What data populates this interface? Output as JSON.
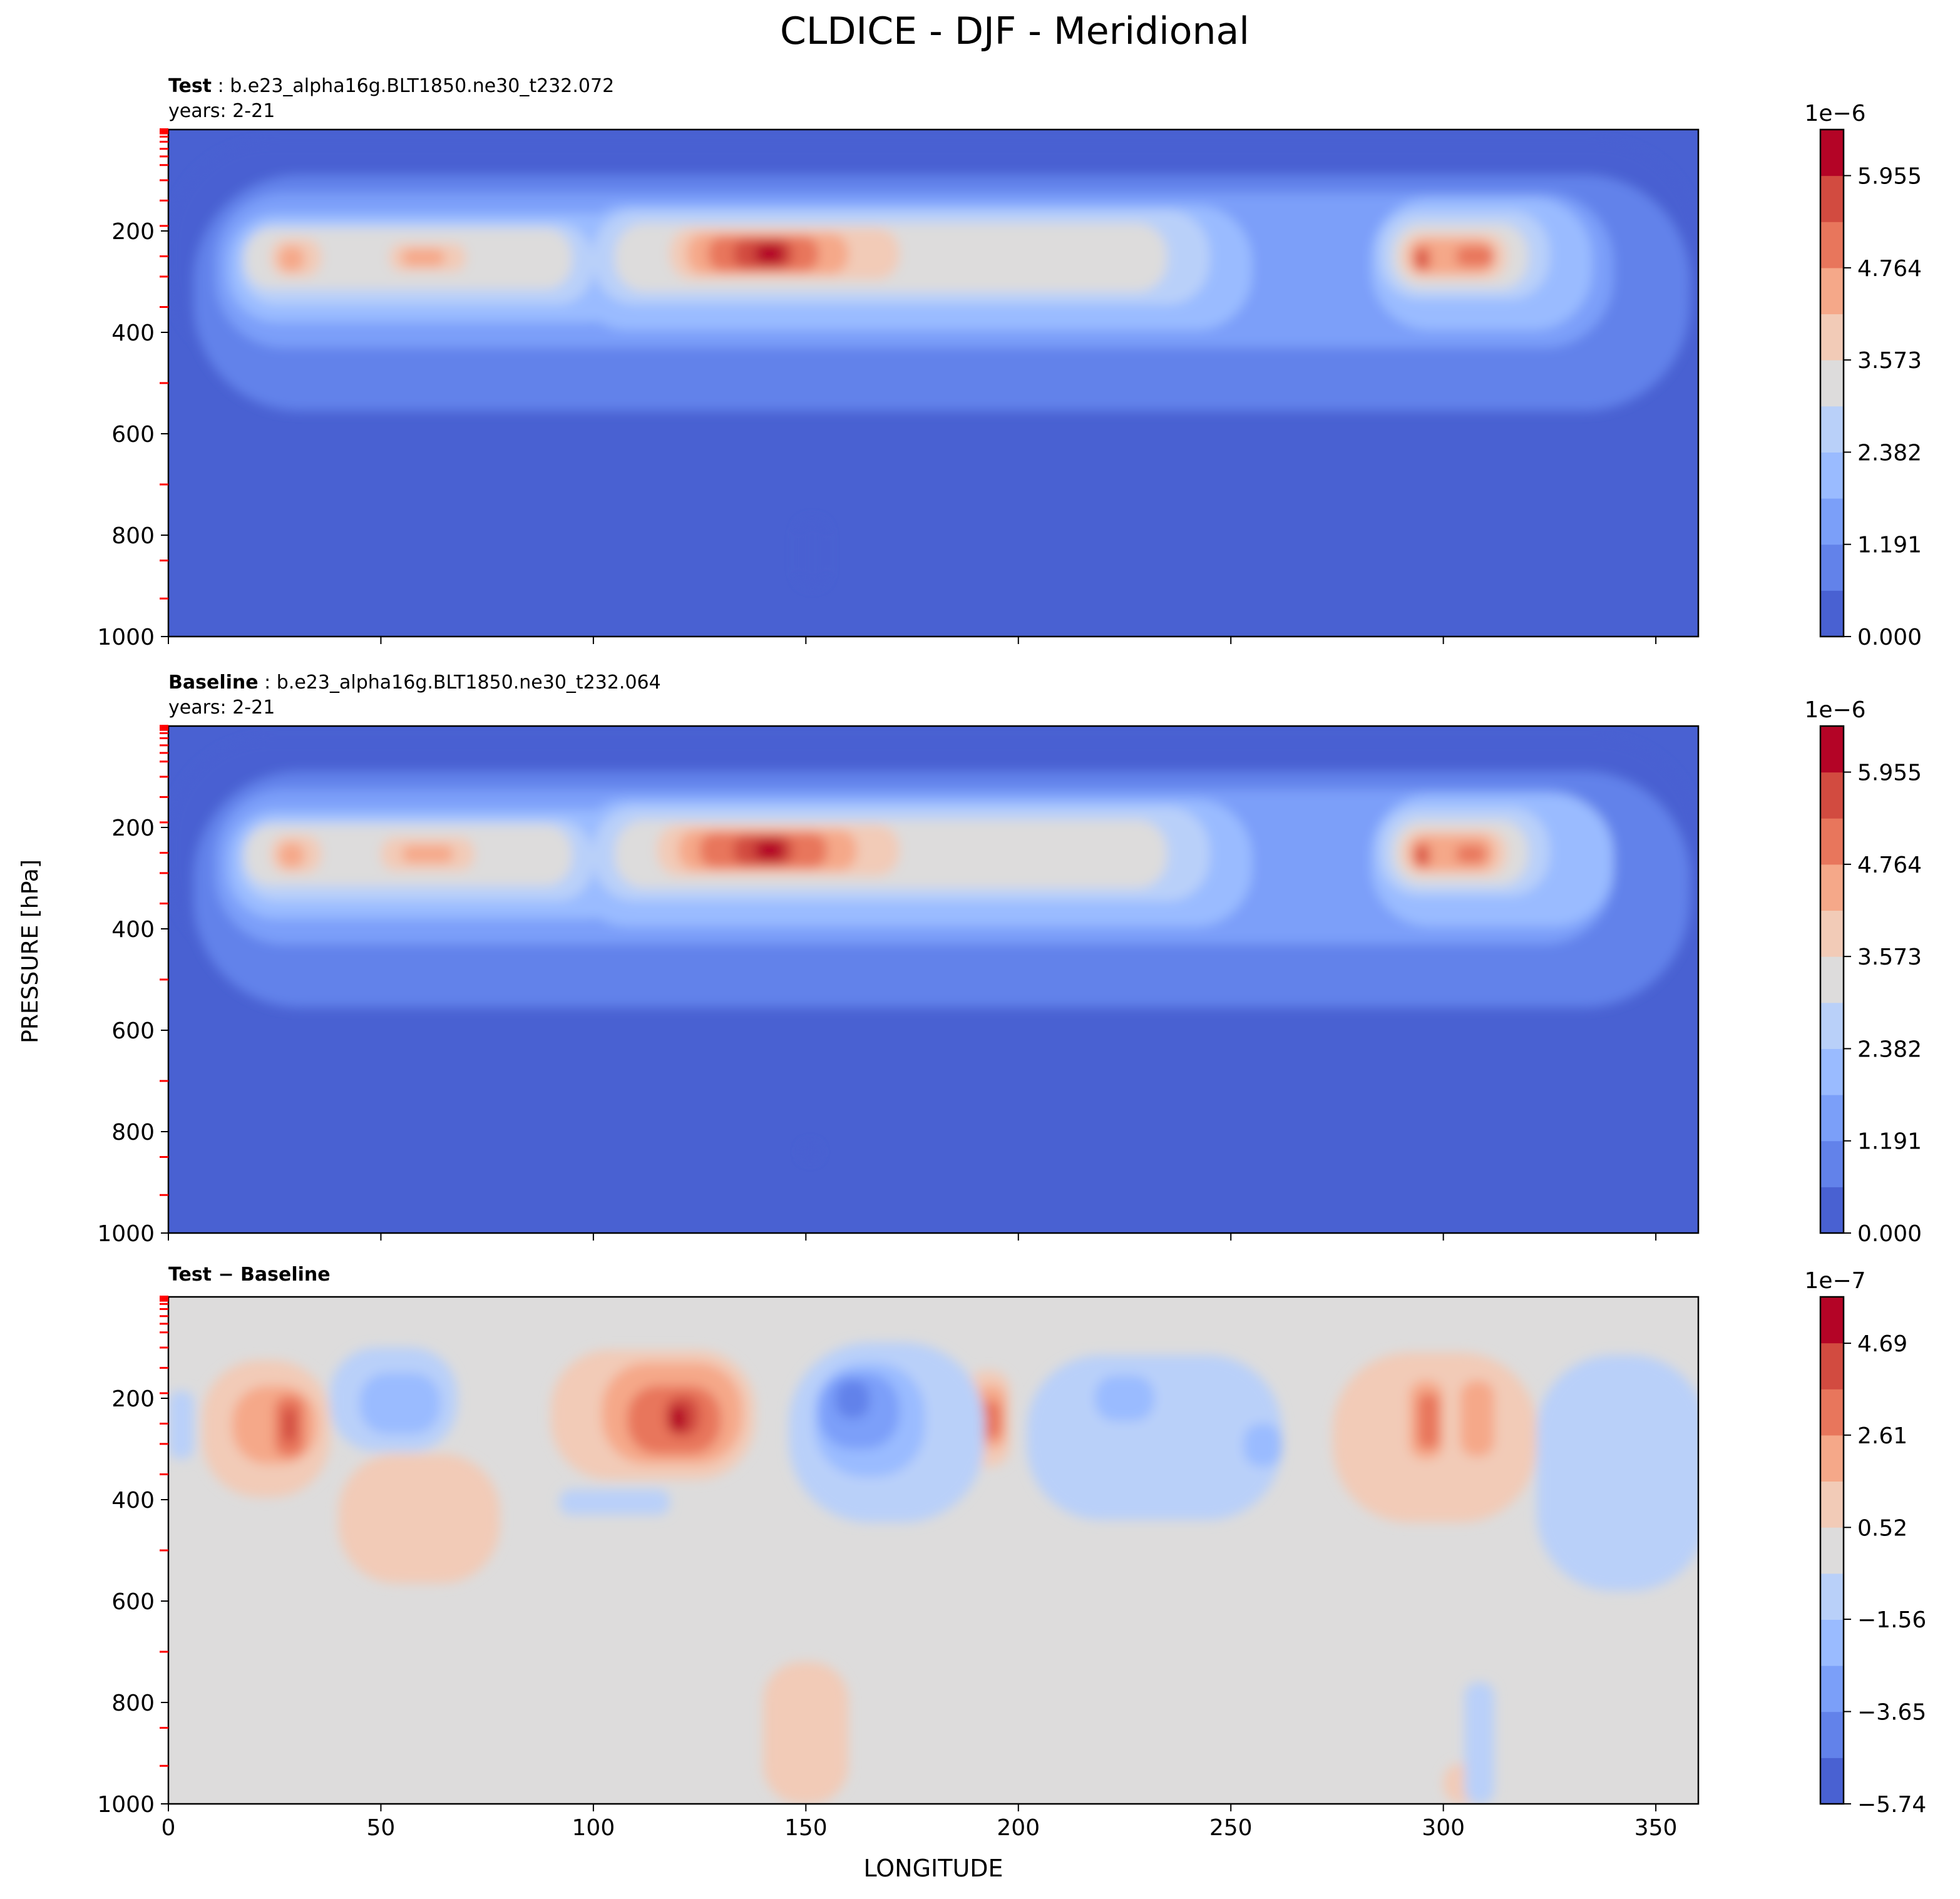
{
  "chart_data": {
    "title": "CLDICE - DJF - Meridional",
    "xlabel": "LONGITUDE",
    "ylabel": "PRESSURE [hPa]",
    "type": "heatmap",
    "panels": [
      {
        "title_bold": "Test",
        "title_rest": ": b.e23_alpha16g.BLT1850.ne30_t232.072",
        "subtitle": "years: 2-21",
        "xlim": [
          0,
          360
        ],
        "ylim": [
          1000,
          0
        ],
        "yticks": [
          "200",
          "400",
          "600",
          "800",
          "1000"
        ],
        "colorbar": {
          "exponent": "1e−6",
          "ticks": [
            "0.000",
            "1.191",
            "2.382",
            "3.573",
            "4.764",
            "5.955"
          ],
          "min": 0,
          "max": 6.55,
          "levels": 11
        },
        "layers": [
          {
            "level": 1,
            "blobs": [
              [
                0,
                360,
                25,
                475
              ]
            ]
          },
          {
            "level": 2,
            "blobs": [
              [
                6,
                358,
                90,
                555
              ]
            ]
          },
          {
            "level": 3,
            "blobs": [
              [
                11,
                340,
                125,
                430
              ]
            ]
          },
          {
            "level": 4,
            "blobs": [
              [
                14,
                110,
                165,
                380
              ],
              [
                95,
                255,
                150,
                395
              ],
              [
                283,
                335,
                135,
                395
              ]
            ]
          },
          {
            "level": 5,
            "blobs": [
              [
                17,
                100,
                185,
                345
              ],
              [
                100,
                245,
                160,
                345
              ],
              [
                285,
                325,
                160,
                335
              ]
            ]
          },
          {
            "level": 6,
            "blobs": [
              [
                18,
                95,
                195,
                315
              ],
              [
                105,
                235,
                185,
                320
              ],
              [
                288,
                320,
                185,
                315
              ]
            ]
          },
          {
            "level": 7,
            "blobs": [
              [
                24,
                36,
                215,
                290
              ],
              [
                52,
                70,
                225,
                280
              ],
              [
                118,
                172,
                195,
                295
              ],
              [
                290,
                315,
                205,
                295
              ]
            ]
          },
          {
            "level": 8,
            "blobs": [
              [
                26,
                32,
                230,
                280
              ],
              [
                55,
                65,
                235,
                270
              ],
              [
                122,
                160,
                205,
                285
              ],
              [
                292,
                312,
                215,
                285
              ]
            ]
          },
          {
            "level": 9,
            "blobs": [
              [
                127,
                153,
                210,
                280
              ],
              [
                293,
                297,
                230,
                280
              ],
              [
                303,
                312,
                230,
                270
              ]
            ]
          },
          {
            "level": 10,
            "blobs": [
              [
                133,
                147,
                215,
                275
              ],
              [
                294,
                296,
                240,
                270
              ]
            ]
          },
          {
            "level": 11,
            "blobs": [
              [
                138,
                145,
                225,
                265
              ]
            ]
          },
          {
            "level": 1,
            "blobs": [
              [
                148,
                155,
                770,
                900
              ]
            ]
          }
        ]
      },
      {
        "title_bold": "Baseline",
        "title_rest": ": b.e23_alpha16g.BLT1850.ne30_t232.064",
        "subtitle": "years: 2-21",
        "xlim": [
          0,
          360
        ],
        "ylim": [
          1000,
          0
        ],
        "yticks": [
          "200",
          "400",
          "600",
          "800",
          "1000"
        ],
        "colorbar": {
          "exponent": "1e−6",
          "ticks": [
            "0.000",
            "1.191",
            "2.382",
            "3.573",
            "4.764",
            "5.955"
          ],
          "min": 0,
          "max": 6.55,
          "levels": 11
        },
        "layers": [
          {
            "level": 1,
            "blobs": [
              [
                0,
                360,
                25,
                470
              ]
            ]
          },
          {
            "level": 2,
            "blobs": [
              [
                6,
                358,
                90,
                555
              ]
            ]
          },
          {
            "level": 3,
            "blobs": [
              [
                11,
                340,
                125,
                430
              ]
            ]
          },
          {
            "level": 4,
            "blobs": [
              [
                14,
                110,
                165,
                380
              ],
              [
                95,
                255,
                145,
                395
              ],
              [
                283,
                340,
                135,
                395
              ]
            ]
          },
          {
            "level": 5,
            "blobs": [
              [
                17,
                100,
                185,
                345
              ],
              [
                100,
                245,
                160,
                345
              ],
              [
                285,
                325,
                160,
                335
              ]
            ]
          },
          {
            "level": 6,
            "blobs": [
              [
                18,
                95,
                195,
                315
              ],
              [
                105,
                235,
                185,
                320
              ],
              [
                288,
                320,
                185,
                315
              ]
            ]
          },
          {
            "level": 7,
            "blobs": [
              [
                24,
                36,
                215,
                290
              ],
              [
                50,
                72,
                220,
                285
              ],
              [
                115,
                172,
                195,
                295
              ],
              [
                290,
                315,
                205,
                295
              ]
            ]
          },
          {
            "level": 8,
            "blobs": [
              [
                26,
                32,
                230,
                280
              ],
              [
                55,
                67,
                235,
                270
              ],
              [
                120,
                162,
                205,
                285
              ],
              [
                292,
                312,
                215,
                285
              ]
            ]
          },
          {
            "level": 9,
            "blobs": [
              [
                125,
                155,
                210,
                280
              ],
              [
                293,
                297,
                230,
                280
              ],
              [
                303,
                310,
                235,
                270
              ]
            ]
          },
          {
            "level": 10,
            "blobs": [
              [
                133,
                147,
                215,
                275
              ],
              [
                294,
                296,
                240,
                270
              ]
            ]
          },
          {
            "level": 11,
            "blobs": [
              [
                138,
                145,
                225,
                265
              ]
            ]
          },
          {
            "level": 1,
            "blobs": [
              [
                149,
                153,
                825,
                855
              ]
            ]
          }
        ]
      },
      {
        "title_bold": "Test − Baseline",
        "title_rest": "",
        "subtitle": "",
        "xlim": [
          0,
          360
        ],
        "ylim": [
          1000,
          0
        ],
        "yticks": [
          "200",
          "400",
          "600",
          "800",
          "1000"
        ],
        "xticks": [
          "0",
          "50",
          "100",
          "150",
          "200",
          "250",
          "300",
          "350"
        ],
        "colorbar": {
          "exponent": "1e−7",
          "ticks": [
            "−5.74",
            "−3.65",
            "−1.56",
            "0.52",
            "2.61",
            "4.69"
          ],
          "min": -5.74,
          "max": 5.74,
          "levels": 11
        },
        "layers": [
          {
            "level": 7,
            "blobs": [
              [
                8,
                38,
                125,
                395
              ],
              [
                40,
                78,
                310,
                565
              ],
              [
                90,
                138,
                105,
                360
              ],
              [
                188,
                198,
                145,
                335
              ],
              [
                274,
                322,
                110,
                445
              ],
              [
                140,
                160,
                720,
                1000
              ],
              [
                300,
                310,
                920,
                1000
              ]
            ]
          },
          {
            "level": 8,
            "blobs": [
              [
                15,
                35,
                175,
                330
              ],
              [
                102,
                135,
                130,
                330
              ],
              [
                190,
                197,
                175,
                300
              ],
              [
                292,
                300,
                165,
                320
              ],
              [
                304,
                312,
                165,
                315
              ]
            ]
          },
          {
            "level": 9,
            "blobs": [
              [
                25,
                32,
                195,
                315
              ],
              [
                108,
                130,
                175,
                310
              ],
              [
                191,
                196,
                205,
                280
              ],
              [
                294,
                299,
                190,
                300
              ]
            ]
          },
          {
            "level": 10,
            "blobs": [
              [
                27,
                30,
                220,
                285
              ],
              [
                117,
                125,
                195,
                275
              ]
            ]
          },
          {
            "level": 11,
            "blobs": [
              [
                118,
                122,
                215,
                265
              ]
            ]
          },
          {
            "level": 5,
            "blobs": [
              [
                38,
                68,
                100,
                305
              ],
              [
                146,
                192,
                90,
                445
              ],
              [
                202,
                262,
                115,
                440
              ],
              [
                92,
                118,
                380,
                430
              ],
              [
                322,
                362,
                115,
                580
              ],
              [
                0,
                6,
                185,
                320
              ],
              [
                305,
                312,
                760,
                1000
              ]
            ]
          },
          {
            "level": 4,
            "blobs": [
              [
                45,
                64,
                150,
                270
              ],
              [
                152,
                178,
                130,
                355
              ],
              [
                218,
                232,
                155,
                245
              ],
              [
                253,
                262,
                250,
                335
              ]
            ]
          },
          {
            "level": 3,
            "blobs": [
              [
                153,
                172,
                150,
                300
              ]
            ]
          },
          {
            "level": 2,
            "blobs": [
              [
                157,
                165,
                165,
                240
              ]
            ]
          }
        ]
      }
    ]
  },
  "palette": {
    "coolwarm11": [
      "#4961d2",
      "#6282ea",
      "#7b9ff9",
      "#9abbff",
      "#b9d0f9",
      "#dddcdc",
      "#f2cbb7",
      "#f5a889",
      "#e8765c",
      "#d24b40",
      "#b40426"
    ],
    "tick_minor": "#ff0000"
  }
}
